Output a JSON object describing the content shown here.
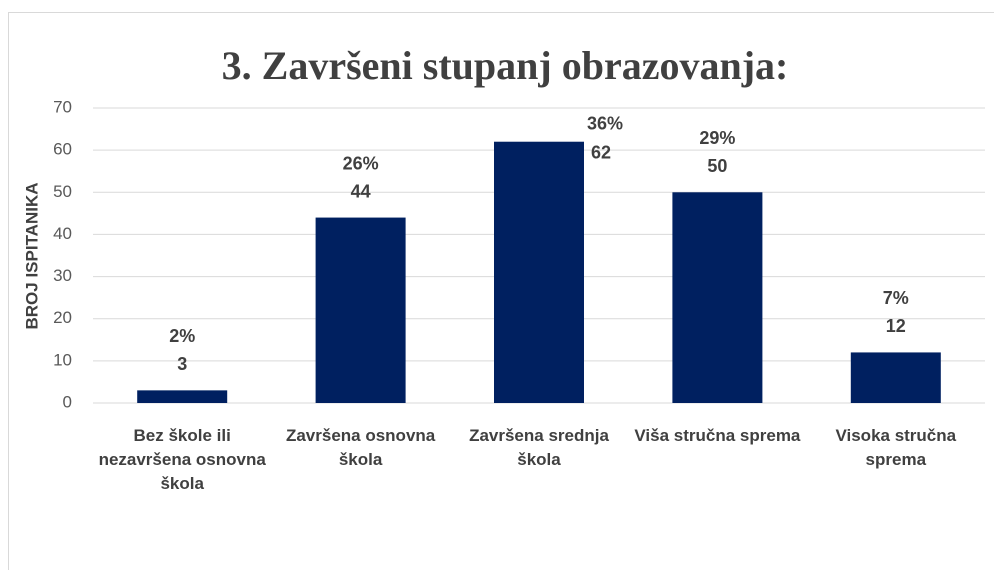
{
  "chart_data": {
    "type": "bar",
    "title": "3. Završeni stupanj obrazovanja:",
    "y_axis_label": "BROJ ISPITANIKA",
    "categories": [
      "Bez škole ili nezavršena osnovna škola",
      "Završena osnovna škola",
      "Završena srednja škola",
      "Viša stručna sprema",
      "Visoka stručna sprema"
    ],
    "values": [
      3,
      44,
      62,
      50,
      12
    ],
    "percent_labels": [
      "2%",
      "26%",
      "36%",
      "29%",
      "7%"
    ],
    "color": "#002060",
    "ylim": [
      0,
      70
    ],
    "yticks": [
      0,
      10,
      20,
      30,
      40,
      50,
      60,
      70
    ],
    "grid": true
  }
}
